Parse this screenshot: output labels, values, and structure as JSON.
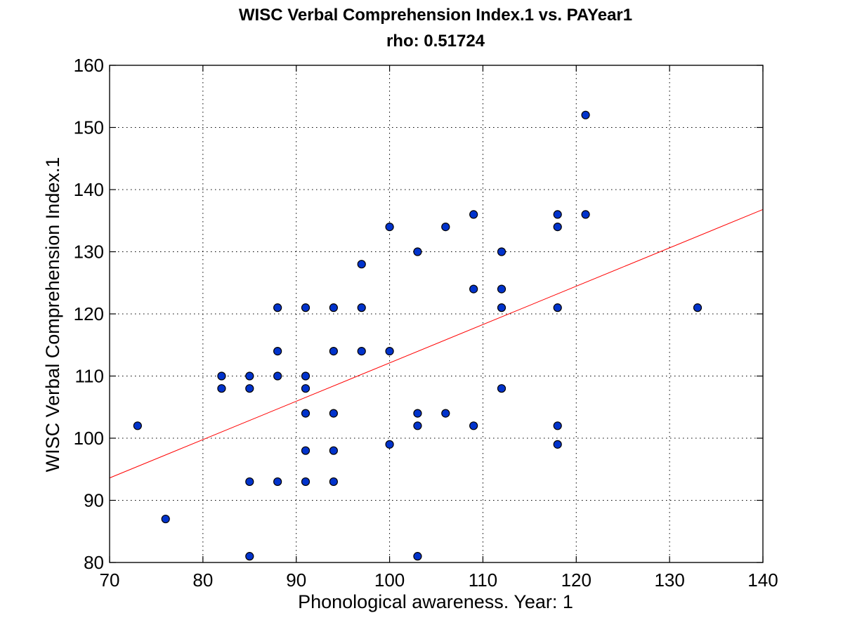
{
  "chart_data": {
    "type": "scatter",
    "title": "WISC Verbal Comprehension Index.1 vs. PAYear1",
    "subtitle": "rho: 0.51724",
    "xlabel": "Phonological awareness. Year: 1",
    "ylabel": "WISC Verbal Comprehension Index.1",
    "xlim": [
      70,
      140
    ],
    "ylim": [
      80,
      160
    ],
    "xticks": [
      70,
      80,
      90,
      100,
      110,
      120,
      130,
      140
    ],
    "yticks": [
      80,
      90,
      100,
      110,
      120,
      130,
      140,
      150,
      160
    ],
    "grid": true,
    "marker_color": "#0033cc",
    "fit_line_color": "#ff0000",
    "fit_line": {
      "x": [
        70,
        140
      ],
      "y": [
        93.6,
        136.8
      ]
    },
    "points": [
      {
        "x": 73,
        "y": 102
      },
      {
        "x": 76,
        "y": 87
      },
      {
        "x": 82,
        "y": 110
      },
      {
        "x": 82,
        "y": 108
      },
      {
        "x": 85,
        "y": 110
      },
      {
        "x": 85,
        "y": 108
      },
      {
        "x": 85,
        "y": 93
      },
      {
        "x": 85,
        "y": 81
      },
      {
        "x": 88,
        "y": 121
      },
      {
        "x": 88,
        "y": 114
      },
      {
        "x": 88,
        "y": 110
      },
      {
        "x": 88,
        "y": 93
      },
      {
        "x": 91,
        "y": 121
      },
      {
        "x": 91,
        "y": 110
      },
      {
        "x": 91,
        "y": 108
      },
      {
        "x": 91,
        "y": 104
      },
      {
        "x": 91,
        "y": 98
      },
      {
        "x": 91,
        "y": 93
      },
      {
        "x": 94,
        "y": 121
      },
      {
        "x": 94,
        "y": 114
      },
      {
        "x": 94,
        "y": 104
      },
      {
        "x": 94,
        "y": 98
      },
      {
        "x": 94,
        "y": 93
      },
      {
        "x": 97,
        "y": 128
      },
      {
        "x": 97,
        "y": 121
      },
      {
        "x": 97,
        "y": 114
      },
      {
        "x": 100,
        "y": 134
      },
      {
        "x": 100,
        "y": 114
      },
      {
        "x": 100,
        "y": 99
      },
      {
        "x": 103,
        "y": 130
      },
      {
        "x": 103,
        "y": 104
      },
      {
        "x": 103,
        "y": 102
      },
      {
        "x": 103,
        "y": 81
      },
      {
        "x": 106,
        "y": 134
      },
      {
        "x": 106,
        "y": 104
      },
      {
        "x": 109,
        "y": 136
      },
      {
        "x": 109,
        "y": 124
      },
      {
        "x": 109,
        "y": 102
      },
      {
        "x": 112,
        "y": 130
      },
      {
        "x": 112,
        "y": 124
      },
      {
        "x": 112,
        "y": 121
      },
      {
        "x": 112,
        "y": 108
      },
      {
        "x": 118,
        "y": 136
      },
      {
        "x": 118,
        "y": 134
      },
      {
        "x": 118,
        "y": 121
      },
      {
        "x": 118,
        "y": 102
      },
      {
        "x": 118,
        "y": 99
      },
      {
        "x": 121,
        "y": 152
      },
      {
        "x": 121,
        "y": 136
      },
      {
        "x": 133,
        "y": 121
      }
    ]
  }
}
